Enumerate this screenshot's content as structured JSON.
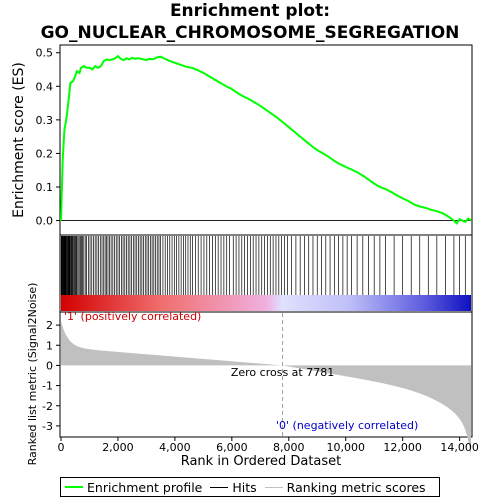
{
  "title_line1": "Enrichment plot:",
  "title_line2": "GO_NUCLEAR_CHROMOSOME_SEGREGATION",
  "chart_data": {
    "type": "line",
    "es_panel": {
      "ylabel": "Enrichment score (ES)",
      "yticks": [
        "0.0",
        "0.1",
        "0.2",
        "0.3",
        "0.4",
        "0.5"
      ],
      "ylim": [
        -0.04,
        0.52
      ],
      "xlim": [
        0,
        14400
      ],
      "points": [
        [
          0,
          0
        ],
        [
          60,
          0.18
        ],
        [
          120,
          0.27
        ],
        [
          200,
          0.31
        ],
        [
          280,
          0.37
        ],
        [
          330,
          0.41
        ],
        [
          420,
          0.415
        ],
        [
          500,
          0.43
        ],
        [
          560,
          0.445
        ],
        [
          650,
          0.44
        ],
        [
          700,
          0.455
        ],
        [
          800,
          0.46
        ],
        [
          900,
          0.455
        ],
        [
          1000,
          0.455
        ],
        [
          1100,
          0.45
        ],
        [
          1200,
          0.46
        ],
        [
          1300,
          0.455
        ],
        [
          1400,
          0.46
        ],
        [
          1500,
          0.475
        ],
        [
          1600,
          0.48
        ],
        [
          1700,
          0.478
        ],
        [
          1800,
          0.48
        ],
        [
          1900,
          0.483
        ],
        [
          2000,
          0.49
        ],
        [
          2100,
          0.482
        ],
        [
          2200,
          0.478
        ],
        [
          2300,
          0.483
        ],
        [
          2400,
          0.48
        ],
        [
          2500,
          0.485
        ],
        [
          2600,
          0.482
        ],
        [
          2700,
          0.484
        ],
        [
          2800,
          0.482
        ],
        [
          2900,
          0.48
        ],
        [
          3000,
          0.478
        ],
        [
          3100,
          0.482
        ],
        [
          3200,
          0.48
        ],
        [
          3300,
          0.483
        ],
        [
          3400,
          0.487
        ],
        [
          3500,
          0.488
        ],
        [
          3600,
          0.484
        ],
        [
          3800,
          0.476
        ],
        [
          4000,
          0.47
        ],
        [
          4200,
          0.464
        ],
        [
          4400,
          0.458
        ],
        [
          4600,
          0.455
        ],
        [
          4800,
          0.448
        ],
        [
          5000,
          0.44
        ],
        [
          5200,
          0.43
        ],
        [
          5400,
          0.42
        ],
        [
          5600,
          0.41
        ],
        [
          5800,
          0.4
        ],
        [
          6000,
          0.392
        ],
        [
          6200,
          0.38
        ],
        [
          6400,
          0.37
        ],
        [
          6600,
          0.362
        ],
        [
          6800,
          0.352
        ],
        [
          7000,
          0.342
        ],
        [
          7200,
          0.33
        ],
        [
          7400,
          0.318
        ],
        [
          7600,
          0.306
        ],
        [
          7800,
          0.292
        ],
        [
          8000,
          0.278
        ],
        [
          8200,
          0.264
        ],
        [
          8400,
          0.25
        ],
        [
          8600,
          0.236
        ],
        [
          8800,
          0.222
        ],
        [
          9000,
          0.21
        ],
        [
          9200,
          0.2
        ],
        [
          9400,
          0.19
        ],
        [
          9600,
          0.178
        ],
        [
          9800,
          0.168
        ],
        [
          10000,
          0.16
        ],
        [
          10200,
          0.152
        ],
        [
          10400,
          0.144
        ],
        [
          10600,
          0.134
        ],
        [
          10800,
          0.122
        ],
        [
          11000,
          0.11
        ],
        [
          11200,
          0.1
        ],
        [
          11400,
          0.094
        ],
        [
          11600,
          0.085
        ],
        [
          11800,
          0.075
        ],
        [
          12000,
          0.066
        ],
        [
          12200,
          0.058
        ],
        [
          12400,
          0.048
        ],
        [
          12600,
          0.042
        ],
        [
          12800,
          0.038
        ],
        [
          13000,
          0.032
        ],
        [
          13200,
          0.028
        ],
        [
          13400,
          0.022
        ],
        [
          13600,
          0.012
        ],
        [
          13800,
          0.0
        ],
        [
          13900,
          -0.008
        ],
        [
          14000,
          0.004
        ],
        [
          14100,
          0.0
        ],
        [
          14200,
          -0.004
        ],
        [
          14300,
          0.006
        ],
        [
          14400,
          0.0
        ]
      ]
    },
    "hits": [
      10,
      25,
      40,
      55,
      70,
      85,
      100,
      115,
      130,
      150,
      170,
      190,
      210,
      230,
      250,
      270,
      290,
      310,
      335,
      360,
      385,
      410,
      440,
      470,
      500,
      530,
      560,
      600,
      640,
      680,
      720,
      760,
      800,
      850,
      900,
      960,
      1020,
      1080,
      1140,
      1200,
      1260,
      1320,
      1380,
      1440,
      1500,
      1550,
      1600,
      1650,
      1700,
      1760,
      1820,
      1880,
      1940,
      2000,
      2060,
      2120,
      2180,
      2240,
      2300,
      2360,
      2420,
      2480,
      2540,
      2600,
      2660,
      2720,
      2780,
      2840,
      2900,
      2960,
      3020,
      3080,
      3140,
      3200,
      3260,
      3320,
      3380,
      3440,
      3500,
      3580,
      3660,
      3740,
      3820,
      3900,
      3980,
      4060,
      4140,
      4220,
      4300,
      4380,
      4460,
      4540,
      4620,
      4720,
      4820,
      4920,
      5020,
      5120,
      5220,
      5320,
      5420,
      5520,
      5620,
      5720,
      5820,
      5920,
      6050,
      6150,
      6250,
      6350,
      6450,
      6550,
      6650,
      6750,
      6850,
      6950,
      7050,
      7150,
      7250,
      7350,
      7450,
      7550,
      7650,
      7750,
      7850,
      7950,
      8100,
      8250,
      8400,
      8550,
      8700,
      8850,
      9000,
      9150,
      9300,
      9450,
      9600,
      9750,
      9900,
      10050,
      10200,
      10400,
      10600,
      10800,
      11000,
      11200,
      11400,
      11700,
      12000,
      12300,
      12600,
      12900,
      13200,
      13500,
      13800,
      14000,
      14200
    ],
    "ranked_panel": {
      "ylabel": "Ranked list metric (Signal2Noise)",
      "yticks": [
        "2",
        "1",
        "0",
        "-1",
        "-2",
        "-3"
      ],
      "ylim": [
        -3.5,
        2.6
      ],
      "zero_cross_label": "Zero cross at 7781",
      "zero_cross_value": 7781,
      "pos_label": "'1' (positively correlated)",
      "neg_label": "'0' (negatively correlated)"
    },
    "xlabel": "Rank in Ordered Dataset",
    "xticks": [
      "0",
      "2,000",
      "4,000",
      "6,000",
      "8,000",
      "10,000",
      "12,000",
      "14,000"
    ],
    "xtick_values": [
      0,
      2000,
      4000,
      6000,
      8000,
      10000,
      12000,
      14000
    ],
    "series": [
      {
        "name": "Enrichment profile",
        "color": "#00ff00"
      },
      {
        "name": "Hits",
        "color": "#000000"
      },
      {
        "name": "Ranking metric scores",
        "color": "#c0c0c0"
      }
    ]
  }
}
